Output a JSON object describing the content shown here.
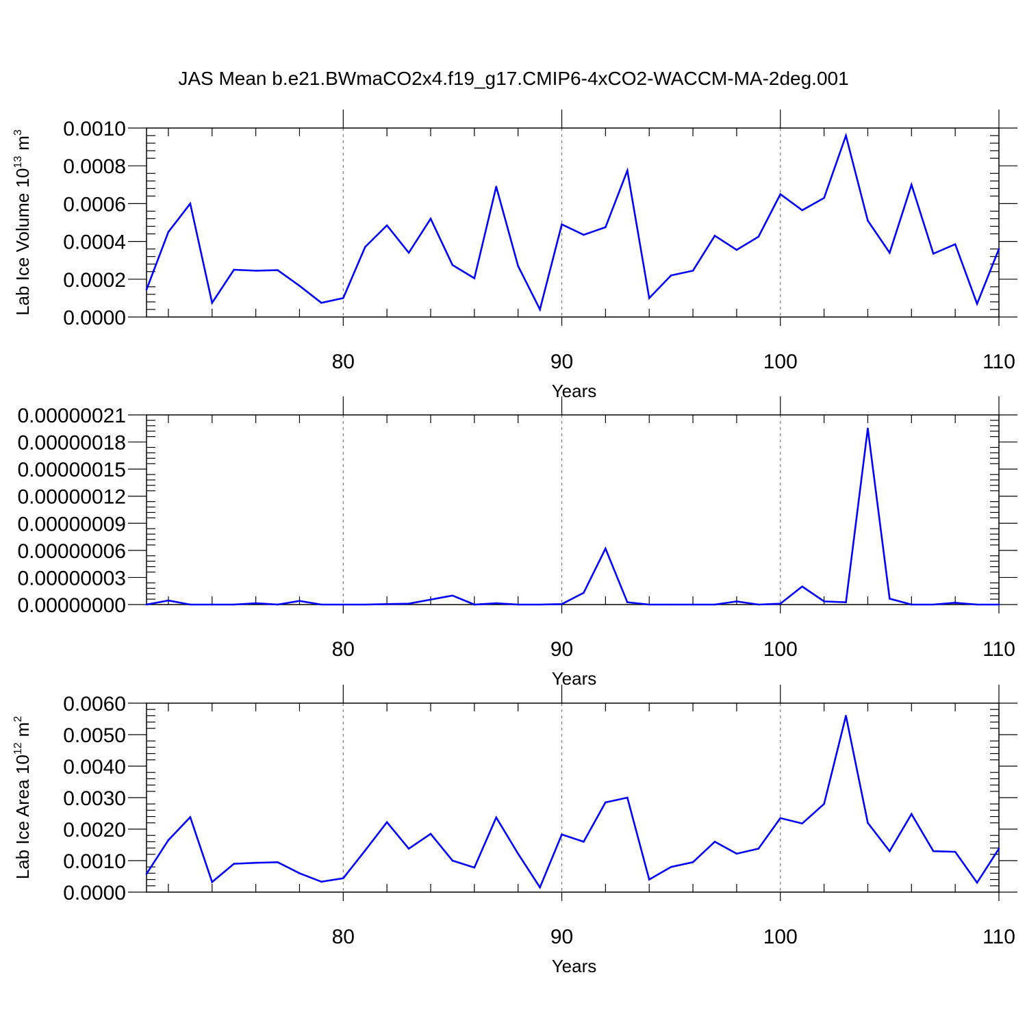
{
  "title": "JAS Mean b.e21.BWmaCO2x4.f19_g17.CMIP6-4xCO2-WACCM-MA-2deg.001",
  "colors": {
    "series": "#0000ff",
    "axes": "#000000",
    "grid": "#777777"
  },
  "chart_data": [
    {
      "type": "line",
      "xlabel": "Years",
      "ylabel_main": "Lab Ice Volume 10",
      "ylabel_exp": "13",
      "ylabel_unit": "m",
      "ylabel_unit_exp": "3",
      "xlim": [
        71,
        110
      ],
      "ylim": [
        0,
        0.001
      ],
      "xticks": [
        80,
        90,
        100,
        110
      ],
      "xtick_labels": [
        "80",
        "90",
        "100",
        "110"
      ],
      "yticks": [
        0,
        0.0002,
        0.0004,
        0.0006,
        0.0008,
        0.001
      ],
      "ytick_labels": [
        "0.0000",
        "0.0002",
        "0.0004",
        "0.0006",
        "0.0008",
        "0.0010"
      ],
      "grid": "dashed vertical at major x ticks",
      "x": [
        71,
        72,
        73,
        74,
        75,
        76,
        77,
        78,
        79,
        80,
        81,
        82,
        83,
        84,
        85,
        86,
        87,
        88,
        89,
        90,
        91,
        92,
        93,
        94,
        95,
        96,
        97,
        98,
        99,
        100,
        101,
        102,
        103,
        104,
        105,
        106,
        107,
        108,
        109,
        110
      ],
      "series": [
        {
          "values": [
            0.000145,
            0.00045,
            0.0006,
            7.5e-05,
            0.00025,
            0.000245,
            0.000248,
            0.000165,
            7.5e-05,
            0.0001,
            0.00037,
            0.000485,
            0.00034,
            0.00052,
            0.000275,
            0.000205,
            0.00069,
            0.00027,
            4e-05,
            0.00049,
            0.000435,
            0.000475,
            0.000775,
            0.0001,
            0.00022,
            0.000245,
            0.00043,
            0.000355,
            0.000425,
            0.00065,
            0.000565,
            0.00063,
            0.00096,
            0.00051,
            0.00034,
            0.0007,
            0.000335,
            0.000385,
            7e-05,
            0.00036
          ]
        }
      ]
    },
    {
      "type": "line",
      "xlabel": "Years",
      "xlim": [
        71,
        110
      ],
      "ylim": [
        0,
        2.1e-07
      ],
      "xticks": [
        80,
        90,
        100,
        110
      ],
      "xtick_labels": [
        "80",
        "90",
        "100",
        "110"
      ],
      "yticks": [
        0,
        3e-08,
        6e-08,
        9e-08,
        1.2e-07,
        1.5e-07,
        1.8e-07,
        2.1e-07
      ],
      "ytick_labels": [
        "0.00000000",
        "0.00000003",
        "0.00000006",
        "0.00000009",
        "0.00000012",
        "0.00000015",
        "0.00000018",
        "0.00000021"
      ],
      "grid": "dashed vertical at major x ticks",
      "x": [
        71,
        72,
        73,
        74,
        75,
        76,
        77,
        78,
        79,
        80,
        81,
        82,
        83,
        84,
        85,
        86,
        87,
        88,
        89,
        90,
        91,
        92,
        93,
        94,
        95,
        96,
        97,
        98,
        99,
        100,
        101,
        102,
        103,
        104,
        105,
        106,
        107,
        108,
        109,
        110
      ],
      "series": [
        {
          "values": [
            0.0,
            4.5e-09,
            0.0,
            0.0,
            0.0,
            1.5e-09,
            0.0,
            4e-09,
            0.0,
            0.0,
            0.0,
            5e-10,
            1e-09,
            5.5e-09,
            1e-08,
            0.0,
            1.5e-09,
            0.0,
            0.0,
            5e-10,
            1.3e-08,
            6.2e-08,
            2.5e-09,
            0.0,
            0.0,
            0.0,
            0.0,
            3.5e-09,
            0.0,
            1e-09,
            2e-08,
            3.5e-09,
            2.5e-09,
            1.95e-07,
            6.5e-09,
            0.0,
            0.0,
            2e-09,
            0.0,
            0.0
          ]
        }
      ]
    },
    {
      "type": "line",
      "xlabel": "Years",
      "ylabel_main": "Lab Ice Area 10",
      "ylabel_exp": "12",
      "ylabel_unit": "m",
      "ylabel_unit_exp": "2",
      "xlim": [
        71,
        110
      ],
      "ylim": [
        0,
        0.006
      ],
      "xticks": [
        80,
        90,
        100,
        110
      ],
      "xtick_labels": [
        "80",
        "90",
        "100",
        "110"
      ],
      "yticks": [
        0,
        0.001,
        0.002,
        0.003,
        0.004,
        0.005,
        0.006
      ],
      "ytick_labels": [
        "0.0000",
        "0.0010",
        "0.0020",
        "0.0030",
        "0.0040",
        "0.0050",
        "0.0060"
      ],
      "grid": "dashed vertical at major x ticks",
      "x": [
        71,
        72,
        73,
        74,
        75,
        76,
        77,
        78,
        79,
        80,
        81,
        82,
        83,
        84,
        85,
        86,
        87,
        88,
        89,
        90,
        91,
        92,
        93,
        94,
        95,
        96,
        97,
        98,
        99,
        100,
        101,
        102,
        103,
        104,
        105,
        106,
        107,
        108,
        109,
        110
      ],
      "series": [
        {
          "values": [
            0.00058,
            0.00165,
            0.00238,
            0.00032,
            0.0009,
            0.00093,
            0.00095,
            0.0006,
            0.00033,
            0.00044,
            0.00132,
            0.00222,
            0.00138,
            0.00185,
            0.001,
            0.00078,
            0.00237,
            0.00122,
            0.00015,
            0.00183,
            0.0016,
            0.00285,
            0.003,
            0.0004,
            0.0008,
            0.00095,
            0.0016,
            0.00122,
            0.00138,
            0.00235,
            0.00218,
            0.0028,
            0.0056,
            0.0022,
            0.0013,
            0.00248,
            0.0013,
            0.00128,
            0.0003,
            0.00138
          ]
        }
      ]
    }
  ]
}
